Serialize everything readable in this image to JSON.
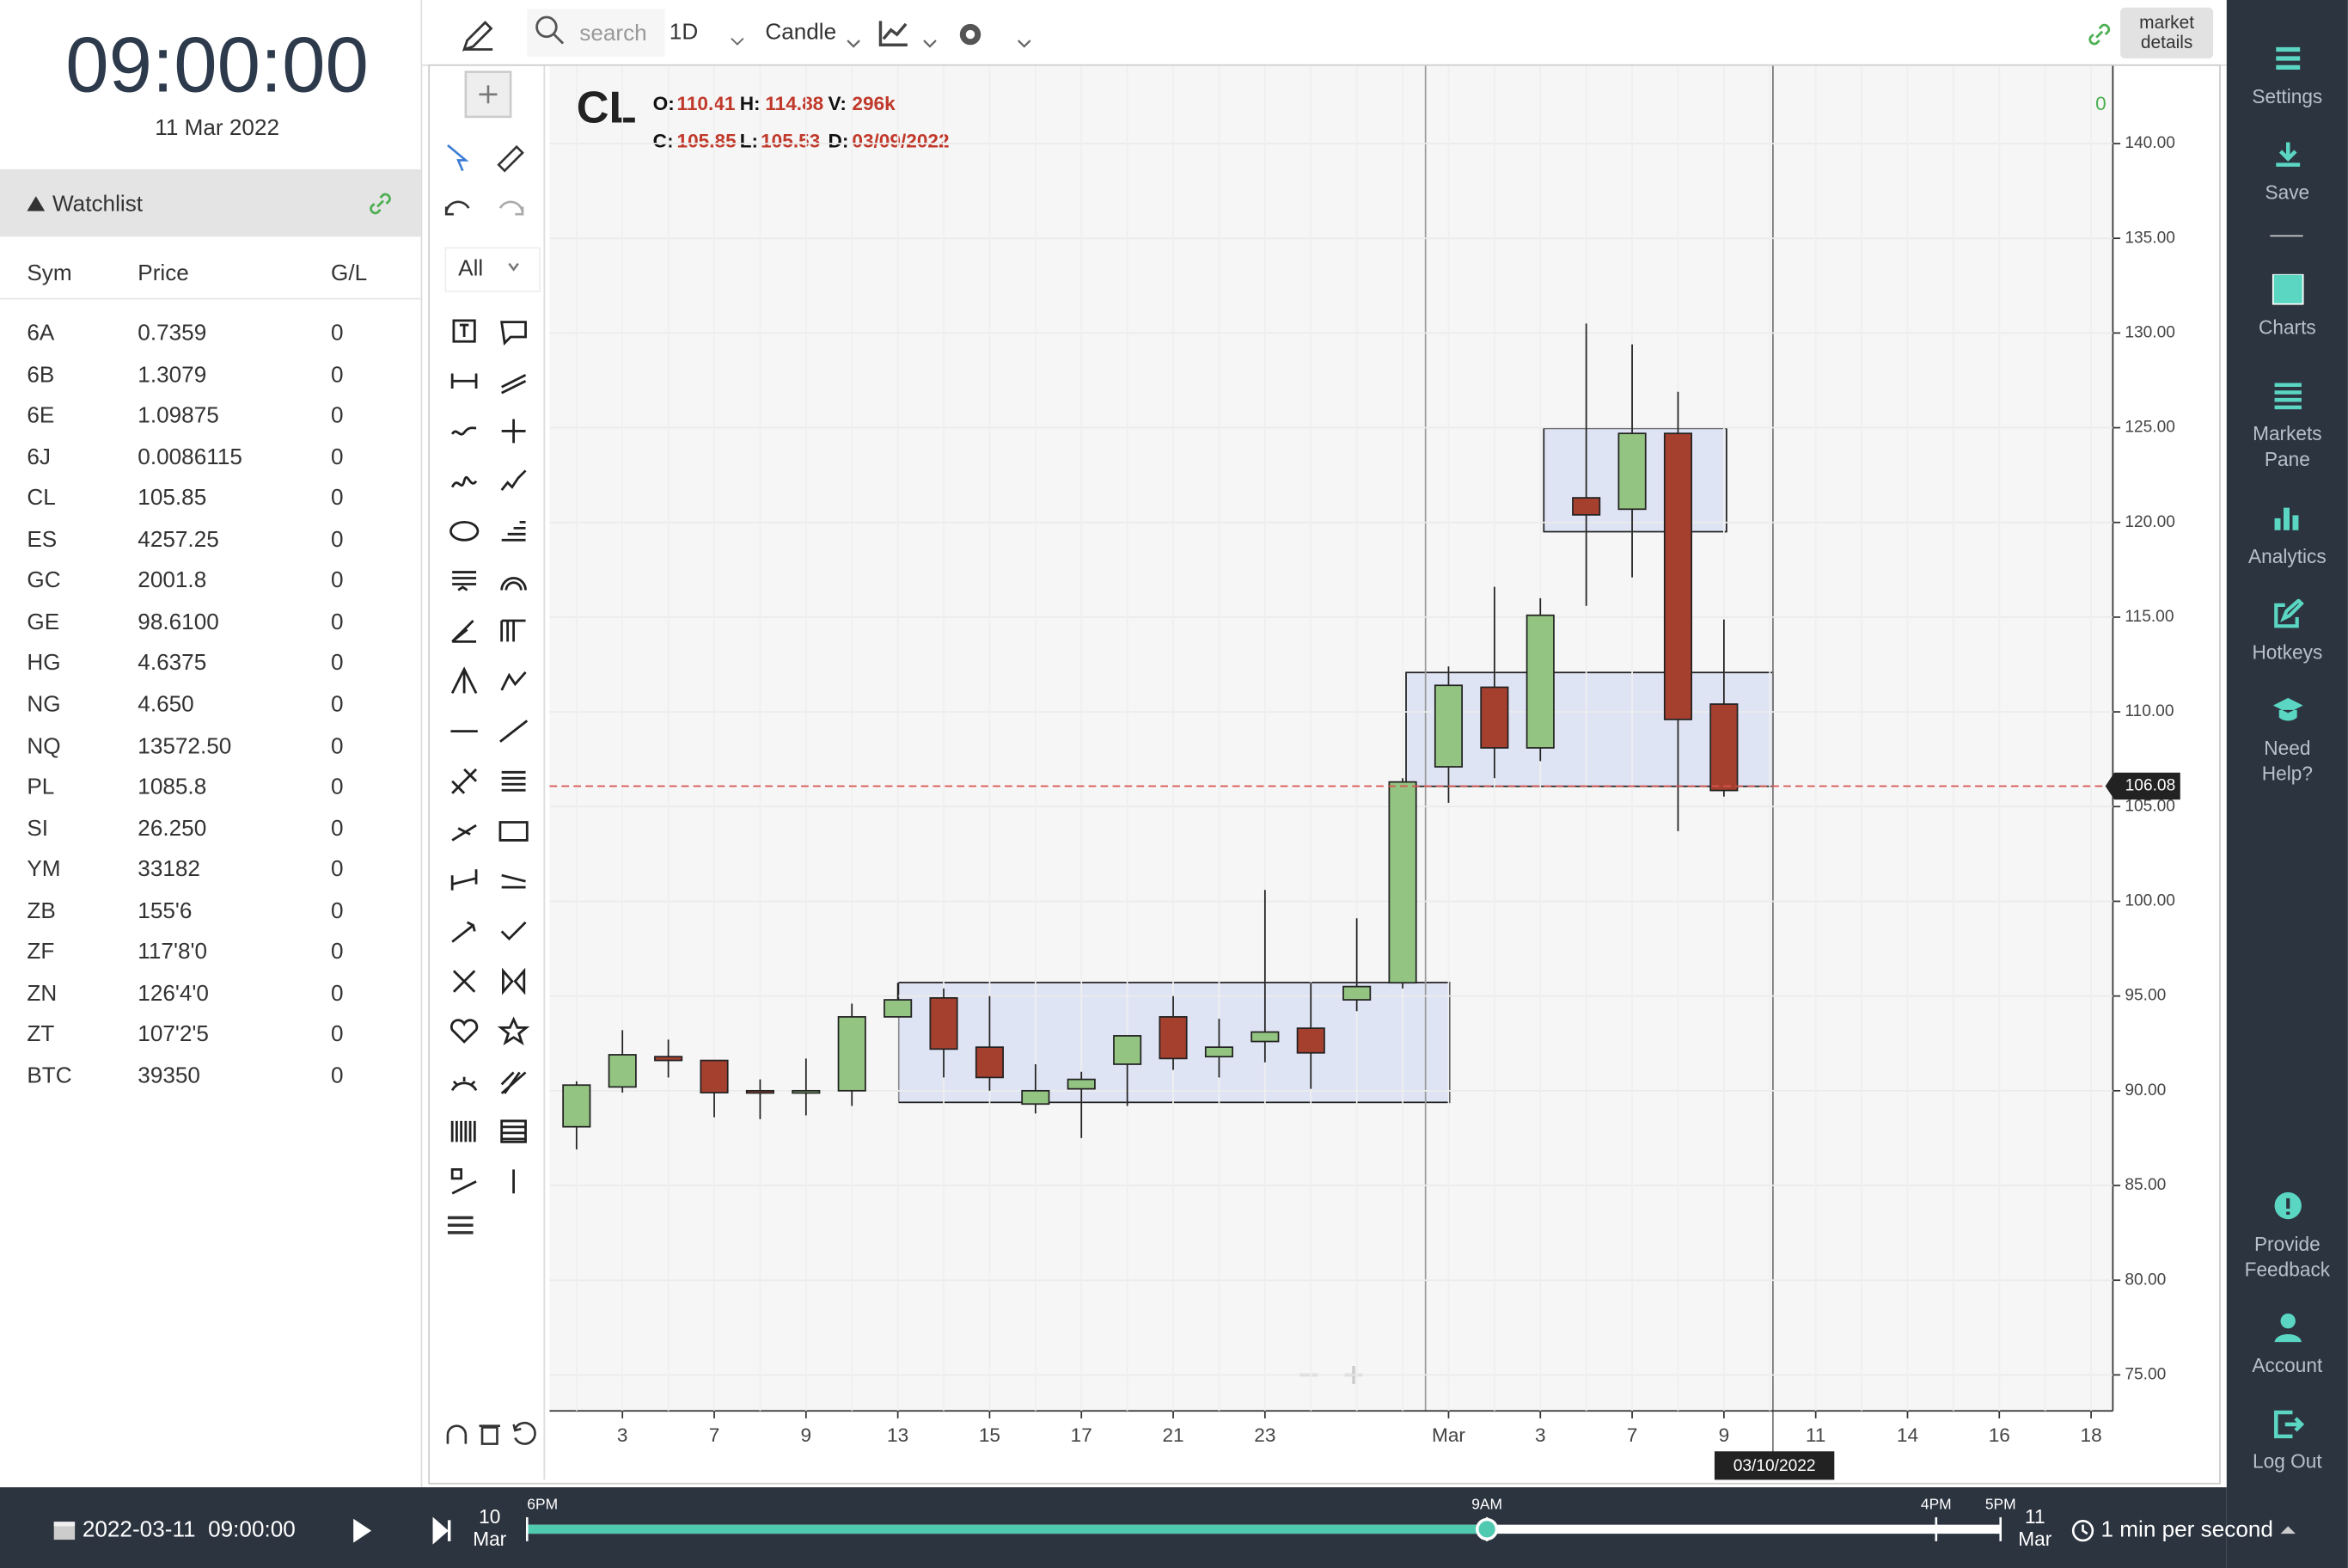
{
  "clock": {
    "time": "09:00:00",
    "date": "11 Mar 2022"
  },
  "watchlist": {
    "title": "Watchlist",
    "columns": [
      "Sym",
      "Price",
      "G/L"
    ],
    "rows": [
      [
        "6A",
        "0.7359",
        "0"
      ],
      [
        "6B",
        "1.3079",
        "0"
      ],
      [
        "6E",
        "1.09875",
        "0"
      ],
      [
        "6J",
        "0.0086115",
        "0"
      ],
      [
        "CL",
        "105.85",
        "0"
      ],
      [
        "ES",
        "4257.25",
        "0"
      ],
      [
        "GC",
        "2001.8",
        "0"
      ],
      [
        "GE",
        "98.6100",
        "0"
      ],
      [
        "HG",
        "4.6375",
        "0"
      ],
      [
        "NG",
        "4.650",
        "0"
      ],
      [
        "NQ",
        "13572.50",
        "0"
      ],
      [
        "PL",
        "1085.8",
        "0"
      ],
      [
        "SI",
        "26.250",
        "0"
      ],
      [
        "YM",
        "33182",
        "0"
      ],
      [
        "ZB",
        "155'6",
        "0"
      ],
      [
        "ZF",
        "117'8'0",
        "0"
      ],
      [
        "ZN",
        "126'4'0",
        "0"
      ],
      [
        "ZT",
        "107'2'5",
        "0"
      ],
      [
        "BTC",
        "39350",
        "0"
      ]
    ]
  },
  "toolbar": {
    "search": "search",
    "interval": "1D",
    "chart_style": "Candle",
    "market_details": "market details",
    "counter": "0"
  },
  "drawing_tools": {
    "filter": "All"
  },
  "sidebar": [
    "Settings",
    "Save",
    "Charts",
    "Markets Pane",
    "Analytics",
    "Hotkeys",
    "Need Help?",
    "Provide Feedback",
    "Account",
    "Log Out"
  ],
  "playback": {
    "datetime": "2022-03-11  09:00:00",
    "start_date": "10 Mar",
    "end_date": "11 Mar",
    "marks": [
      "6PM",
      "9AM",
      "4PM",
      "5PM"
    ],
    "speed": "1 min per second"
  },
  "chart_data": {
    "type": "candlestick",
    "symbol": "CL",
    "header": {
      "open_label": "O:",
      "open": "110.41",
      "high_label": "H:",
      "high": "114.88",
      "volume_label": "V:",
      "volume": "296k",
      "close_label": "C:",
      "close": "105.85",
      "low_label": "L:",
      "low": "105.53",
      "date_label": "D:",
      "date": "03/09/2022"
    },
    "categories": [
      null,
      "3",
      null,
      "7",
      null,
      "9",
      null,
      "13",
      null,
      "15",
      null,
      "17",
      null,
      "21",
      null,
      "23",
      null,
      null,
      null,
      "Mar",
      null,
      "3",
      null,
      "7",
      null,
      "9",
      null,
      "11",
      null,
      "14",
      null,
      "16",
      null,
      "18"
    ],
    "open": [
      88.1,
      90.2,
      91.8,
      91.6,
      90.0,
      89.9,
      90.0,
      93.9,
      94.9,
      92.3,
      89.3,
      90.1,
      91.4,
      93.9,
      91.8,
      92.6,
      93.3,
      94.8,
      95.7,
      107.1,
      111.3,
      108.1,
      121.3,
      120.7,
      124.7,
      110.41,
      null,
      null,
      null,
      null,
      null,
      null,
      null,
      null
    ],
    "high": [
      90.5,
      93.2,
      92.7,
      91.6,
      90.6,
      91.7,
      94.6,
      95.7,
      95.4,
      95.0,
      91.4,
      91.0,
      92.9,
      95.0,
      93.8,
      100.6,
      95.7,
      99.1,
      106.5,
      112.4,
      116.6,
      116.0,
      130.5,
      129.4,
      126.9,
      114.88,
      null,
      null,
      null,
      null,
      null,
      null,
      null,
      null
    ],
    "low": [
      86.9,
      89.9,
      90.7,
      88.6,
      88.5,
      88.7,
      89.2,
      93.9,
      90.7,
      90.0,
      88.8,
      87.5,
      89.2,
      91.1,
      90.7,
      91.5,
      90.1,
      94.2,
      95.4,
      105.2,
      106.5,
      107.4,
      115.6,
      117.1,
      103.7,
      105.53,
      null,
      null,
      null,
      null,
      null,
      null,
      null,
      null
    ],
    "close": [
      90.3,
      91.9,
      91.6,
      89.9,
      89.9,
      90.0,
      93.9,
      94.8,
      92.2,
      90.7,
      90.0,
      90.6,
      92.9,
      91.7,
      92.3,
      93.1,
      92.0,
      95.5,
      106.3,
      111.4,
      108.1,
      115.1,
      120.4,
      124.7,
      109.6,
      105.85,
      null,
      null,
      null,
      null,
      null,
      null,
      null,
      null
    ],
    "up_color": "#93c481",
    "down_color": "#a5402f",
    "last_price": 106.08,
    "last_price_color": "#d9534f",
    "crosshair_date": "03/10/2022",
    "ylim": [
      73.1,
      144.1
    ],
    "yticks": [
      {
        "value": 75,
        "label": "75.00"
      },
      {
        "value": 80,
        "label": "80.00"
      },
      {
        "value": 85,
        "label": "85.00"
      },
      {
        "value": 90,
        "label": "90.00"
      },
      {
        "value": 95,
        "label": "95.00"
      },
      {
        "value": 100,
        "label": "100.00"
      },
      {
        "value": 105,
        "label": "105.00"
      },
      {
        "value": 110,
        "label": "110.00"
      },
      {
        "value": 115,
        "label": "115.00"
      },
      {
        "value": 120,
        "label": "120.00"
      },
      {
        "value": 125,
        "label": "125.00"
      },
      {
        "value": 130,
        "label": "130.00"
      },
      {
        "value": 135,
        "label": "135.00"
      },
      {
        "value": 140,
        "label": "140.00"
      }
    ],
    "grid": true
  }
}
